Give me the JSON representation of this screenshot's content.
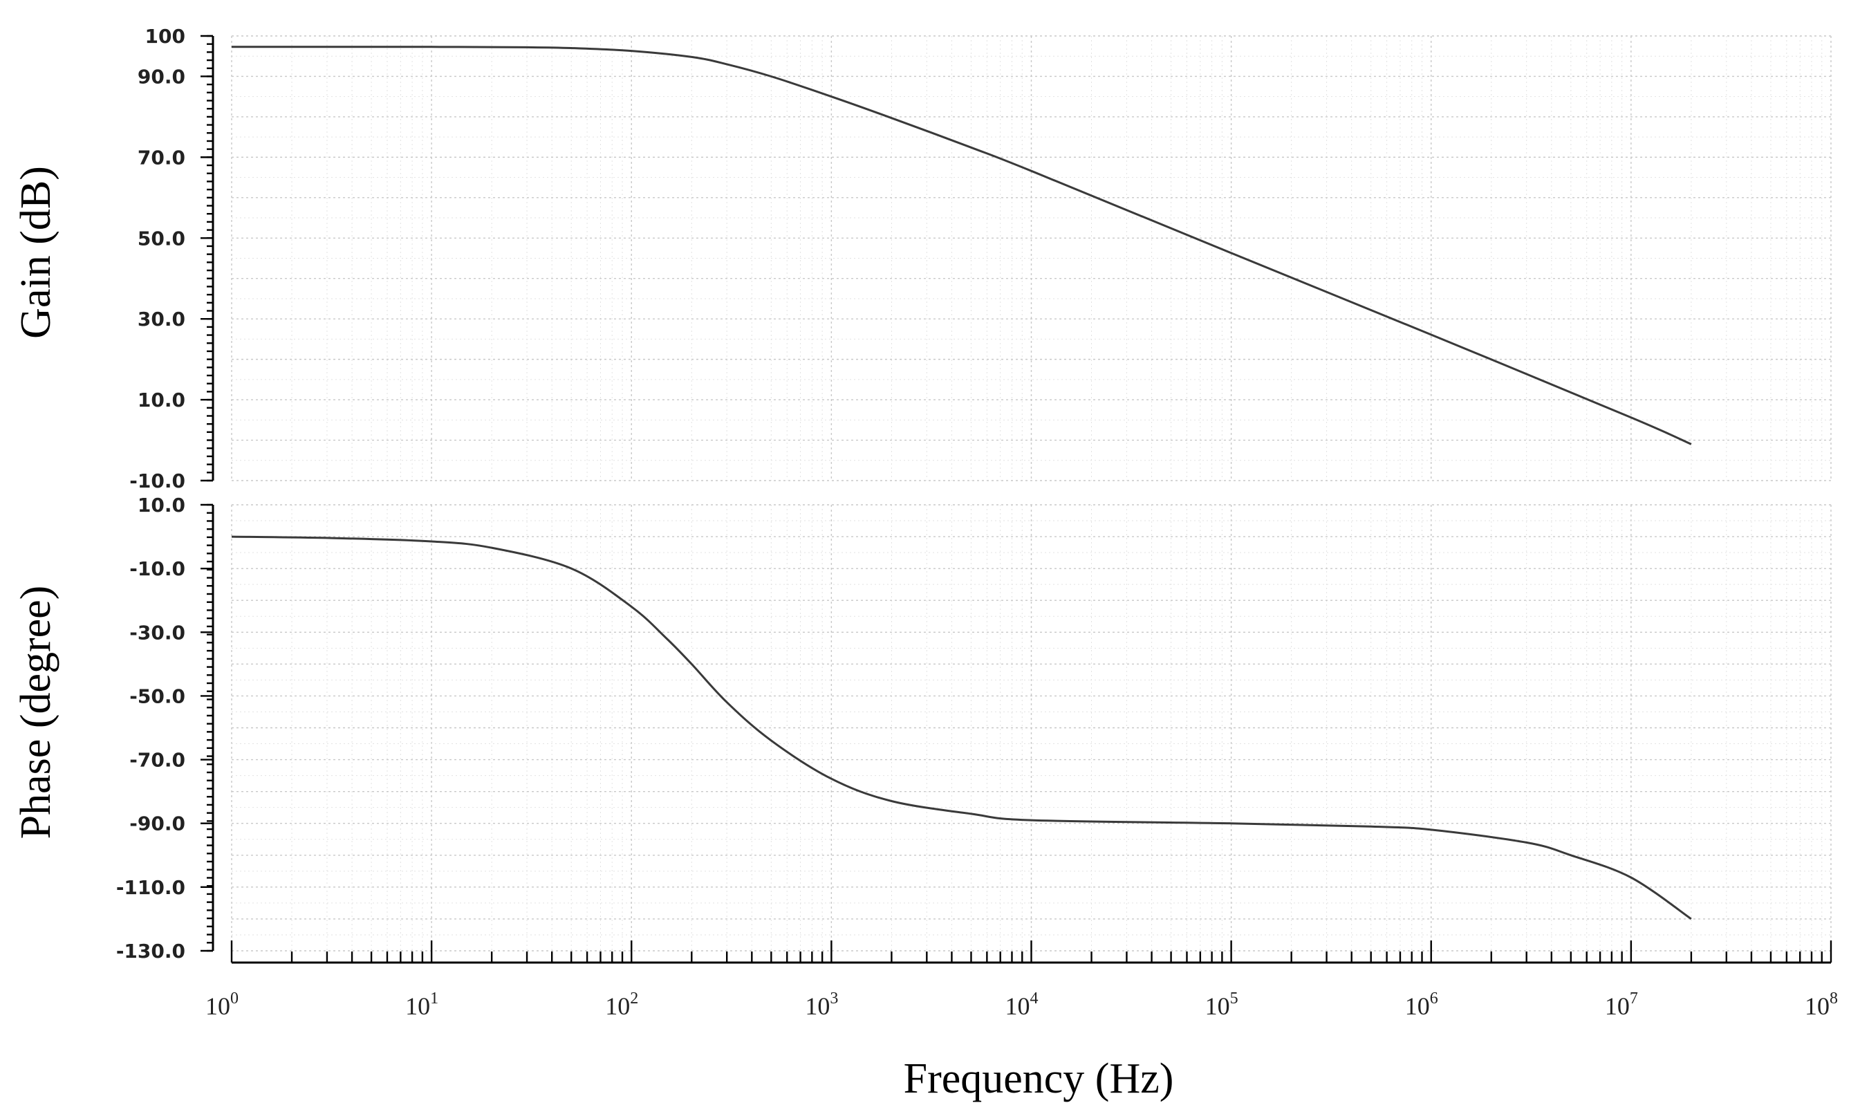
{
  "chart_data": [
    {
      "type": "line",
      "xlabel": "Frequency (Hz)",
      "ylabel": "Gain (dB)",
      "xscale": "log",
      "xlim": [
        1,
        100000000
      ],
      "ylim": [
        -10,
        100
      ],
      "grid": true,
      "x_tick_labels": [
        {
          "base": "10",
          "exp": "0"
        },
        {
          "base": "10",
          "exp": "1"
        },
        {
          "base": "10",
          "exp": "2"
        },
        {
          "base": "10",
          "exp": "3"
        },
        {
          "base": "10",
          "exp": "4"
        },
        {
          "base": "10",
          "exp": "5"
        },
        {
          "base": "10",
          "exp": "6"
        },
        {
          "base": "10",
          "exp": "7"
        },
        {
          "base": "10",
          "exp": "8"
        }
      ],
      "y_tick_labels": [
        "100",
        "90.0",
        "70.0",
        "50.0",
        "30.0",
        "10.0",
        "-10.0"
      ],
      "y_tick_values": [
        100,
        90,
        70,
        50,
        30,
        10,
        -10
      ],
      "series": [
        {
          "x": [
            1,
            3,
            10,
            30,
            50,
            100,
            200,
            300,
            500,
            1000,
            2000,
            5000,
            10000,
            100000,
            1000000,
            10000000,
            20000000
          ],
          "y": [
            97.3,
            97.3,
            97.3,
            97.2,
            97.0,
            96.3,
            94.8,
            93.0,
            90.0,
            85.0,
            79.7,
            72.4,
            66.6,
            46.3,
            26.1,
            5.6,
            -1.0
          ]
        }
      ]
    },
    {
      "type": "line",
      "xlabel": "Frequency (Hz)",
      "ylabel": "Phase (degree)",
      "xscale": "log",
      "xlim": [
        1,
        100000000
      ],
      "ylim": [
        -130,
        10
      ],
      "grid": true,
      "y_tick_labels": [
        "10.0",
        "-10.0",
        "-30.0",
        "-50.0",
        "-70.0",
        "-90.0",
        "-110.0",
        "-130.0"
      ],
      "y_tick_values": [
        10,
        -10,
        -30,
        -50,
        -70,
        -90,
        -110,
        -130
      ],
      "series": [
        {
          "x": [
            1,
            3,
            10,
            20,
            50,
            100,
            150,
            200,
            300,
            500,
            1000,
            2000,
            5000,
            10000,
            100000,
            500000,
            1000000,
            3000000,
            5000000,
            10000000,
            20000000
          ],
          "y": [
            0,
            -0.4,
            -1.5,
            -3.5,
            -10,
            -22,
            -32,
            -40,
            -52,
            -64,
            -76,
            -83,
            -87,
            -89,
            -90,
            -91,
            -92,
            -96,
            -100,
            -107,
            -120
          ]
        }
      ]
    }
  ]
}
